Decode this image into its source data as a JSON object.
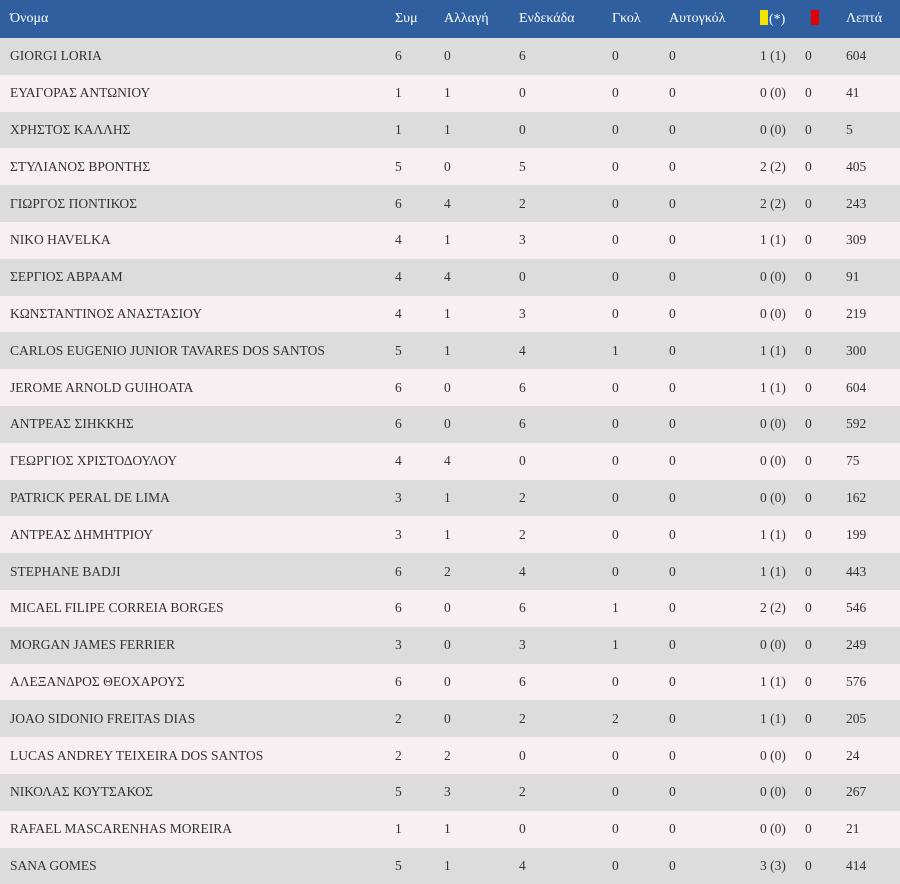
{
  "table": {
    "headers": {
      "name": "Όνομα",
      "apps": "Συμ",
      "sub": "Αλλαγή",
      "start": "Ενδεκάδα",
      "goals": "Γκολ",
      "own_goals": "Αυτογκόλ",
      "yellow_suffix": "(*)",
      "minutes": "Λεπτά"
    },
    "card_colors": {
      "yellow": "#f5e400",
      "red": "#e20000"
    },
    "rows": [
      {
        "name": "GIORGI LORIA",
        "apps": "6",
        "sub": "0",
        "start": "6",
        "goals": "0",
        "own_goals": "0",
        "yellow": "1 (1)",
        "red": "0",
        "minutes": "604"
      },
      {
        "name": "ΕΥΑΓΟΡΑΣ ΑΝΤΩΝΙΟΥ",
        "apps": "1",
        "sub": "1",
        "start": "0",
        "goals": "0",
        "own_goals": "0",
        "yellow": "0 (0)",
        "red": "0",
        "minutes": "41"
      },
      {
        "name": "ΧΡΗΣΤΟΣ ΚΑΛΛΗΣ",
        "apps": "1",
        "sub": "1",
        "start": "0",
        "goals": "0",
        "own_goals": "0",
        "yellow": "0 (0)",
        "red": "0",
        "minutes": "5"
      },
      {
        "name": "ΣΤΥΛΙΑΝΟΣ ΒΡΟΝΤΗΣ",
        "apps": "5",
        "sub": "0",
        "start": "5",
        "goals": "0",
        "own_goals": "0",
        "yellow": "2 (2)",
        "red": "0",
        "minutes": "405"
      },
      {
        "name": "ΓΙΩΡΓΟΣ ΠΟΝΤΙΚΟΣ",
        "apps": "6",
        "sub": "4",
        "start": "2",
        "goals": "0",
        "own_goals": "0",
        "yellow": "2 (2)",
        "red": "0",
        "minutes": "243"
      },
      {
        "name": "NIKO HAVELKA",
        "apps": "4",
        "sub": "1",
        "start": "3",
        "goals": "0",
        "own_goals": "0",
        "yellow": "1 (1)",
        "red": "0",
        "minutes": "309"
      },
      {
        "name": "ΣΕΡΓΙΟΣ ΑΒΡΑΑΜ",
        "apps": "4",
        "sub": "4",
        "start": "0",
        "goals": "0",
        "own_goals": "0",
        "yellow": "0 (0)",
        "red": "0",
        "minutes": "91"
      },
      {
        "name": "ΚΩΝΣΤΑΝΤΙΝΟΣ ΑΝΑΣΤΑΣΙΟΥ",
        "apps": "4",
        "sub": "1",
        "start": "3",
        "goals": "0",
        "own_goals": "0",
        "yellow": "0 (0)",
        "red": "0",
        "minutes": "219"
      },
      {
        "name": "CARLOS EUGENIO JUNIOR TAVARES DOS SANTOS",
        "apps": "5",
        "sub": "1",
        "start": "4",
        "goals": "1",
        "own_goals": "0",
        "yellow": "1 (1)",
        "red": "0",
        "minutes": "300"
      },
      {
        "name": "JEROME ARNOLD GUIHOATA",
        "apps": "6",
        "sub": "0",
        "start": "6",
        "goals": "0",
        "own_goals": "0",
        "yellow": "1 (1)",
        "red": "0",
        "minutes": "604"
      },
      {
        "name": "ΑΝΤΡΕΑΣ ΣΙΗΚΚΗΣ",
        "apps": "6",
        "sub": "0",
        "start": "6",
        "goals": "0",
        "own_goals": "0",
        "yellow": "0 (0)",
        "red": "0",
        "minutes": "592"
      },
      {
        "name": "ΓΕΩΡΓΙΟΣ ΧΡΙΣΤΟΔΟΥΛΟΥ",
        "apps": "4",
        "sub": "4",
        "start": "0",
        "goals": "0",
        "own_goals": "0",
        "yellow": "0 (0)",
        "red": "0",
        "minutes": "75"
      },
      {
        "name": "PATRICK PERAL DE LIMA",
        "apps": "3",
        "sub": "1",
        "start": "2",
        "goals": "0",
        "own_goals": "0",
        "yellow": "0 (0)",
        "red": "0",
        "minutes": "162"
      },
      {
        "name": "ΑΝΤΡΕΑΣ ΔΗΜΗΤΡΙΟΥ",
        "apps": "3",
        "sub": "1",
        "start": "2",
        "goals": "0",
        "own_goals": "0",
        "yellow": "1 (1)",
        "red": "0",
        "minutes": "199"
      },
      {
        "name": "STEPHANE BADJI",
        "apps": "6",
        "sub": "2",
        "start": "4",
        "goals": "0",
        "own_goals": "0",
        "yellow": "1 (1)",
        "red": "0",
        "minutes": "443"
      },
      {
        "name": "MICAEL FILIPE CORREIA BORGES",
        "apps": "6",
        "sub": "0",
        "start": "6",
        "goals": "1",
        "own_goals": "0",
        "yellow": "2 (2)",
        "red": "0",
        "minutes": "546"
      },
      {
        "name": "MORGAN JAMES FERRIER",
        "apps": "3",
        "sub": "0",
        "start": "3",
        "goals": "1",
        "own_goals": "0",
        "yellow": "0 (0)",
        "red": "0",
        "minutes": "249"
      },
      {
        "name": "ΑΛΕΞΑΝΔΡΟΣ ΘΕΟΧΑΡΟΥΣ",
        "apps": "6",
        "sub": "0",
        "start": "6",
        "goals": "0",
        "own_goals": "0",
        "yellow": "1 (1)",
        "red": "0",
        "minutes": "576"
      },
      {
        "name": "JOAO SIDONIO FREITAS DIAS",
        "apps": "2",
        "sub": "0",
        "start": "2",
        "goals": "2",
        "own_goals": "0",
        "yellow": "1 (1)",
        "red": "0",
        "minutes": "205"
      },
      {
        "name": "LUCAS ANDREY TEIXEIRA DOS SANTOS",
        "apps": "2",
        "sub": "2",
        "start": "0",
        "goals": "0",
        "own_goals": "0",
        "yellow": "0 (0)",
        "red": "0",
        "minutes": "24"
      },
      {
        "name": "ΝΙΚΟΛΑΣ ΚΟΥΤΣΑΚΟΣ",
        "apps": "5",
        "sub": "3",
        "start": "2",
        "goals": "0",
        "own_goals": "0",
        "yellow": "0 (0)",
        "red": "0",
        "minutes": "267"
      },
      {
        "name": "RAFAEL MASCARENHAS MOREIRA",
        "apps": "1",
        "sub": "1",
        "start": "0",
        "goals": "0",
        "own_goals": "0",
        "yellow": "0 (0)",
        "red": "0",
        "minutes": "21"
      },
      {
        "name": "SANA GOMES",
        "apps": "5",
        "sub": "1",
        "start": "4",
        "goals": "0",
        "own_goals": "0",
        "yellow": "3 (3)",
        "red": "0",
        "minutes": "414"
      }
    ]
  }
}
